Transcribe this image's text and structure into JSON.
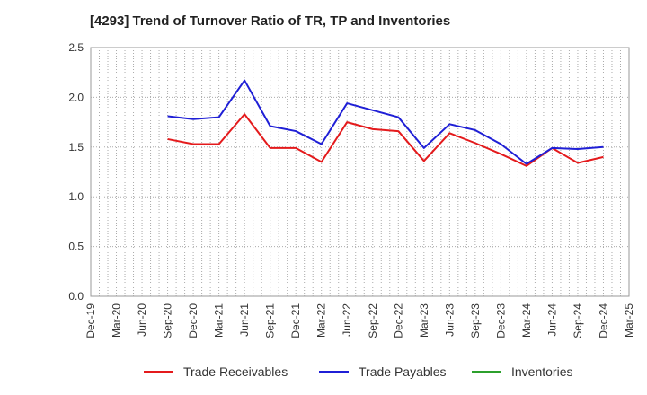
{
  "chart_data": {
    "type": "line",
    "title": "[4293]  Trend of Turnover Ratio of TR, TP and Inventories",
    "xlabel": "",
    "ylabel": "",
    "ylim": [
      0,
      2.5
    ],
    "yticks": [
      "0.0",
      "0.5",
      "1.0",
      "1.5",
      "2.0",
      "2.5"
    ],
    "categories": [
      "Dec-19",
      "Mar-20",
      "Jun-20",
      "Sep-20",
      "Dec-20",
      "Mar-21",
      "Jun-21",
      "Sep-21",
      "Dec-21",
      "Mar-22",
      "Jun-22",
      "Sep-22",
      "Dec-22",
      "Mar-23",
      "Jun-23",
      "Sep-23",
      "Dec-23",
      "Mar-24",
      "Jun-24",
      "Sep-24",
      "Dec-24",
      "Mar-25"
    ],
    "grid": true,
    "legend_position": "bottom",
    "series": [
      {
        "name": "Trade Receivables",
        "color": "#e41a1c",
        "values": [
          null,
          null,
          null,
          1.58,
          1.53,
          1.53,
          1.83,
          1.49,
          1.49,
          1.35,
          1.75,
          1.68,
          1.66,
          1.36,
          1.64,
          1.54,
          1.43,
          1.31,
          1.49,
          1.34,
          1.4,
          null
        ]
      },
      {
        "name": "Trade Payables",
        "color": "#1f1fd6",
        "values": [
          null,
          null,
          null,
          1.81,
          1.78,
          1.8,
          2.17,
          1.71,
          1.66,
          1.53,
          1.94,
          1.87,
          1.8,
          1.49,
          1.73,
          1.67,
          1.53,
          1.33,
          1.49,
          1.48,
          1.5,
          null
        ]
      },
      {
        "name": "Inventories",
        "color": "#2ca02c",
        "values": [
          null,
          null,
          null,
          null,
          null,
          null,
          null,
          null,
          null,
          null,
          null,
          null,
          null,
          null,
          null,
          null,
          null,
          null,
          null,
          null,
          null,
          null
        ]
      }
    ]
  }
}
